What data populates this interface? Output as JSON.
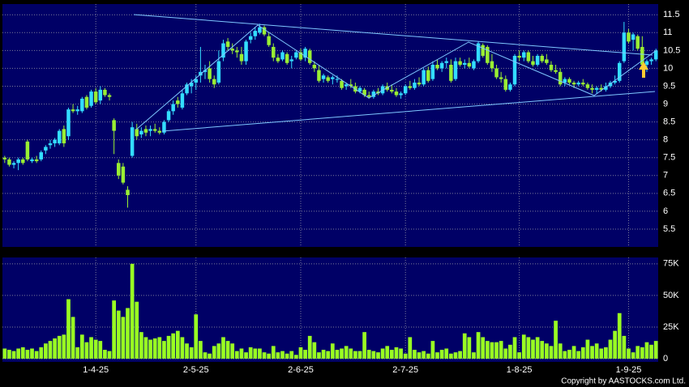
{
  "chart_data": [
    {
      "type": "candlestick",
      "categories": [
        null,
        null,
        null,
        null,
        null,
        null,
        null,
        null,
        null,
        null,
        null,
        null,
        null,
        null,
        null,
        null,
        null,
        null,
        null,
        null,
        "1-4-25",
        null,
        null,
        null,
        null,
        null,
        null,
        null,
        null,
        null,
        null,
        null,
        null,
        null,
        null,
        null,
        null,
        null,
        null,
        null,
        null,
        null,
        "2-5-25",
        null,
        null,
        null,
        null,
        null,
        null,
        null,
        null,
        null,
        null,
        null,
        null,
        null,
        null,
        null,
        null,
        null,
        null,
        null,
        null,
        null,
        null,
        "2-6-25",
        null,
        null,
        null,
        null,
        null,
        null,
        null,
        null,
        null,
        null,
        null,
        null,
        null,
        null,
        null,
        null,
        null,
        null,
        null,
        null,
        null,
        null,
        "2-7-25",
        null,
        null,
        null,
        null,
        null,
        null,
        null,
        null,
        null,
        null,
        null,
        null,
        null,
        null,
        null,
        null,
        null,
        null,
        null,
        null,
        null,
        null,
        null,
        null,
        "1-8-25",
        null,
        null,
        null,
        null,
        null,
        null,
        null,
        null,
        null,
        null,
        null,
        null,
        null,
        null,
        null,
        null,
        null,
        null,
        null,
        null,
        null,
        null,
        null,
        "1-9-25",
        null,
        null,
        null,
        null,
        null
      ],
      "ohlc": [
        [
          7.5,
          7.55,
          7.35,
          7.45
        ],
        [
          7.45,
          7.5,
          7.25,
          7.3
        ],
        [
          7.3,
          7.4,
          7.2,
          7.35
        ],
        [
          7.35,
          7.5,
          7.15,
          7.45
        ],
        [
          7.45,
          7.5,
          7.3,
          7.35
        ],
        [
          7.95,
          8.0,
          7.4,
          7.45
        ],
        [
          7.4,
          7.5,
          7.35,
          7.45
        ],
        [
          7.45,
          7.55,
          7.35,
          7.4
        ],
        [
          7.45,
          7.7,
          7.4,
          7.65
        ],
        [
          7.7,
          7.85,
          7.6,
          7.8
        ],
        [
          7.85,
          8.0,
          7.75,
          7.9
        ],
        [
          7.9,
          8.05,
          7.8,
          8.0
        ],
        [
          7.9,
          8.3,
          7.85,
          8.25
        ],
        [
          8.3,
          8.4,
          7.8,
          7.9
        ],
        [
          8.1,
          8.9,
          8.0,
          8.85
        ],
        [
          8.85,
          9.0,
          8.75,
          8.8
        ],
        [
          8.8,
          8.95,
          8.7,
          8.85
        ],
        [
          8.8,
          9.2,
          8.75,
          9.15
        ],
        [
          9.2,
          9.25,
          8.85,
          8.9
        ],
        [
          8.95,
          9.4,
          8.9,
          9.35
        ],
        [
          9.35,
          9.45,
          9.0,
          9.05
        ],
        [
          9.1,
          9.5,
          9.0,
          9.4
        ],
        [
          9.4,
          9.45,
          9.2,
          9.25
        ],
        [
          9.25,
          9.3,
          9.1,
          9.2
        ],
        [
          8.55,
          8.6,
          7.6,
          8.25
        ],
        [
          7.35,
          7.45,
          6.9,
          7.0
        ],
        [
          7.25,
          7.35,
          6.75,
          6.8
        ],
        [
          6.6,
          6.7,
          6.1,
          6.45
        ],
        [
          7.55,
          8.5,
          7.5,
          8.35
        ],
        [
          8.3,
          8.45,
          8.0,
          8.1
        ],
        [
          8.15,
          8.35,
          8.05,
          8.25
        ],
        [
          8.3,
          8.4,
          8.1,
          8.2
        ],
        [
          8.25,
          8.4,
          8.1,
          8.3
        ],
        [
          8.3,
          8.45,
          8.2,
          8.25
        ],
        [
          8.25,
          8.35,
          8.15,
          8.2
        ],
        [
          8.2,
          8.55,
          8.15,
          8.5
        ],
        [
          8.55,
          8.85,
          8.5,
          8.8
        ],
        [
          8.8,
          9.1,
          8.7,
          9.0
        ],
        [
          9.1,
          9.2,
          8.9,
          9.0
        ],
        [
          8.9,
          9.4,
          8.85,
          9.3
        ],
        [
          9.3,
          9.6,
          9.25,
          9.55
        ],
        [
          9.5,
          9.7,
          9.3,
          9.6
        ],
        [
          9.6,
          9.8,
          9.4,
          9.7
        ],
        [
          9.8,
          10.6,
          9.6,
          9.9
        ],
        [
          9.9,
          10.1,
          9.7,
          9.95
        ],
        [
          10.0,
          10.2,
          9.6,
          9.7
        ],
        [
          9.7,
          9.8,
          9.45,
          9.55
        ],
        [
          9.6,
          10.5,
          9.55,
          10.2
        ],
        [
          10.3,
          10.8,
          10.2,
          10.7
        ],
        [
          10.75,
          10.85,
          10.5,
          10.6
        ],
        [
          10.55,
          10.7,
          10.4,
          10.5
        ],
        [
          10.5,
          10.6,
          10.3,
          10.45
        ],
        [
          10.4,
          10.6,
          10.1,
          10.2
        ],
        [
          10.2,
          10.8,
          10.1,
          10.75
        ],
        [
          10.8,
          11.0,
          10.7,
          10.9
        ],
        [
          10.9,
          11.15,
          10.8,
          11.05
        ],
        [
          11.0,
          11.25,
          10.95,
          11.15
        ],
        [
          11.15,
          11.2,
          10.9,
          10.95
        ],
        [
          10.9,
          11.0,
          10.6,
          10.65
        ],
        [
          10.6,
          10.7,
          10.2,
          10.3
        ],
        [
          10.3,
          10.4,
          10.15,
          10.2
        ],
        [
          10.25,
          10.5,
          10.2,
          10.45
        ],
        [
          10.4,
          10.45,
          10.1,
          10.15
        ],
        [
          10.2,
          10.35,
          10.0,
          10.25
        ],
        [
          10.3,
          10.5,
          10.25,
          10.45
        ],
        [
          10.45,
          10.55,
          10.2,
          10.25
        ],
        [
          10.3,
          10.6,
          10.2,
          10.55
        ],
        [
          10.5,
          10.55,
          10.1,
          10.15
        ],
        [
          10.1,
          10.2,
          9.9,
          10.0
        ],
        [
          9.95,
          10.1,
          9.6,
          9.65
        ],
        [
          9.7,
          9.85,
          9.6,
          9.8
        ],
        [
          9.75,
          9.8,
          9.6,
          9.65
        ],
        [
          9.7,
          9.8,
          9.55,
          9.75
        ],
        [
          9.7,
          9.8,
          9.6,
          9.7
        ],
        [
          9.65,
          9.7,
          9.4,
          9.45
        ],
        [
          9.5,
          9.6,
          9.4,
          9.55
        ],
        [
          9.55,
          9.7,
          9.45,
          9.5
        ],
        [
          9.5,
          9.6,
          9.3,
          9.35
        ],
        [
          9.35,
          9.5,
          9.3,
          9.45
        ],
        [
          9.4,
          9.45,
          9.2,
          9.25
        ],
        [
          9.25,
          9.35,
          9.15,
          9.2
        ],
        [
          9.2,
          9.4,
          9.15,
          9.35
        ],
        [
          9.35,
          9.45,
          9.25,
          9.3
        ],
        [
          9.3,
          9.55,
          9.25,
          9.5
        ],
        [
          9.5,
          9.6,
          9.35,
          9.4
        ],
        [
          9.4,
          9.55,
          9.3,
          9.35
        ],
        [
          9.35,
          9.45,
          9.2,
          9.25
        ],
        [
          9.25,
          9.35,
          9.15,
          9.3
        ],
        [
          9.3,
          9.55,
          9.25,
          9.5
        ],
        [
          9.5,
          9.65,
          9.4,
          9.45
        ],
        [
          9.45,
          9.7,
          9.4,
          9.6
        ],
        [
          9.6,
          9.75,
          9.5,
          9.55
        ],
        [
          9.55,
          10.0,
          9.5,
          9.95
        ],
        [
          9.95,
          10.05,
          9.6,
          9.65
        ],
        [
          9.7,
          10.2,
          9.65,
          10.1
        ],
        [
          10.1,
          10.25,
          9.95,
          10.0
        ],
        [
          10.0,
          10.2,
          9.9,
          10.15
        ],
        [
          10.15,
          10.3,
          10.0,
          10.2
        ],
        [
          10.1,
          10.25,
          9.6,
          9.65
        ],
        [
          9.7,
          10.3,
          9.65,
          10.2
        ],
        [
          10.2,
          10.3,
          10.05,
          10.1
        ],
        [
          10.1,
          10.25,
          10.0,
          10.15
        ],
        [
          10.15,
          10.3,
          10.0,
          10.05
        ],
        [
          10.0,
          10.25,
          9.95,
          10.2
        ],
        [
          10.2,
          10.75,
          10.15,
          10.7
        ],
        [
          10.65,
          10.7,
          10.3,
          10.35
        ],
        [
          10.6,
          10.65,
          10.1,
          10.15
        ],
        [
          10.2,
          10.4,
          9.9,
          10.0
        ],
        [
          10.0,
          10.1,
          9.7,
          9.75
        ],
        [
          9.75,
          9.9,
          9.6,
          9.7
        ],
        [
          9.7,
          9.8,
          9.35,
          9.4
        ],
        [
          9.4,
          9.6,
          9.35,
          9.55
        ],
        [
          9.55,
          10.4,
          9.5,
          10.35
        ],
        [
          10.35,
          10.5,
          10.2,
          10.3
        ],
        [
          10.3,
          10.5,
          10.2,
          10.45
        ],
        [
          10.45,
          10.5,
          10.15,
          10.2
        ],
        [
          10.2,
          10.35,
          10.05,
          10.1
        ],
        [
          10.1,
          10.4,
          10.05,
          10.35
        ],
        [
          10.35,
          10.4,
          10.15,
          10.2
        ],
        [
          10.25,
          10.4,
          10.1,
          10.15
        ],
        [
          10.1,
          10.2,
          9.9,
          9.95
        ],
        [
          9.95,
          10.1,
          9.85,
          9.9
        ],
        [
          9.9,
          10.0,
          9.5,
          9.55
        ],
        [
          9.6,
          9.75,
          9.5,
          9.7
        ],
        [
          9.7,
          9.75,
          9.55,
          9.6
        ],
        [
          9.6,
          9.65,
          9.45,
          9.55
        ],
        [
          9.55,
          9.65,
          9.5,
          9.6
        ],
        [
          9.6,
          9.7,
          9.5,
          9.55
        ],
        [
          9.55,
          9.6,
          9.4,
          9.45
        ],
        [
          9.45,
          9.55,
          9.3,
          9.4
        ],
        [
          9.4,
          9.5,
          9.3,
          9.45
        ],
        [
          9.45,
          9.55,
          9.35,
          9.4
        ],
        [
          9.4,
          9.6,
          9.35,
          9.5
        ],
        [
          9.5,
          9.65,
          9.45,
          9.6
        ],
        [
          9.6,
          9.8,
          9.55,
          9.65
        ],
        [
          9.65,
          10.2,
          9.6,
          10.15
        ],
        [
          10.2,
          11.3,
          10.15,
          11.0
        ],
        [
          11.0,
          11.1,
          10.7,
          10.75
        ],
        [
          10.8,
          11.0,
          10.5,
          10.95
        ],
        [
          10.9,
          10.95,
          10.5,
          10.55
        ],
        [
          10.6,
          10.9,
          10.0,
          10.1
        ],
        [
          10.1,
          10.25,
          9.9,
          10.2
        ],
        [
          10.2,
          10.3,
          10.1,
          10.25
        ],
        [
          10.25,
          10.55,
          10.2,
          10.5
        ]
      ],
      "up_color": "#33ddff",
      "down_color": "#99ee33",
      "ylim": [
        5.0,
        11.8
      ],
      "yticks": [
        5.5,
        6,
        6.5,
        7,
        7.5,
        8,
        8.5,
        9,
        9.5,
        10,
        10.5,
        11,
        11.5
      ],
      "grid": true
    },
    {
      "type": "bar",
      "values": [
        8000,
        7000,
        6000,
        8000,
        9000,
        7000,
        8000,
        6000,
        9000,
        12000,
        14000,
        16000,
        18000,
        19000,
        47000,
        33000,
        9000,
        19000,
        13000,
        17000,
        15000,
        14000,
        7000,
        6000,
        46000,
        38000,
        33000,
        40000,
        75000,
        45000,
        21000,
        17000,
        15000,
        16000,
        17000,
        14000,
        18000,
        20000,
        22000,
        17000,
        12000,
        9000,
        35000,
        14000,
        5000,
        4000,
        10000,
        12000,
        17000,
        14000,
        12000,
        6000,
        8000,
        5000,
        9000,
        8000,
        8000,
        5000,
        4000,
        10000,
        5000,
        6000,
        4000,
        6000,
        3000,
        9000,
        7000,
        18000,
        13000,
        5000,
        7000,
        6000,
        12000,
        7000,
        8000,
        10000,
        8000,
        6000,
        6000,
        21000,
        7000,
        6000,
        5000,
        8000,
        10000,
        7000,
        9000,
        8000,
        4000,
        17000,
        7000,
        5000,
        6000,
        4000,
        14000,
        5000,
        7000,
        8000,
        4000,
        5000,
        6000,
        20000,
        17000,
        5000,
        21000,
        17000,
        14000,
        13000,
        13000,
        14000,
        8000,
        11000,
        17000,
        5000,
        19000,
        17000,
        15000,
        17000,
        14000,
        12000,
        10000,
        30000,
        12000,
        6000,
        7000,
        10000,
        6000,
        9000,
        15000,
        10000,
        12000,
        8000,
        9000,
        15000,
        22000,
        36000,
        18000,
        8000,
        5000,
        10000,
        9000,
        13000,
        11000,
        14000
      ],
      "color": "#99ff22",
      "ylim": [
        0,
        80000
      ],
      "yticks": [
        {
          "value": 0,
          "label": "0"
        },
        {
          "value": 25000,
          "label": "25K"
        },
        {
          "value": 50000,
          "label": "50K"
        },
        {
          "value": 75000,
          "label": "75K"
        }
      ],
      "grid": true
    }
  ],
  "copyright": "Copyright by AASTOCKS.com Ltd."
}
